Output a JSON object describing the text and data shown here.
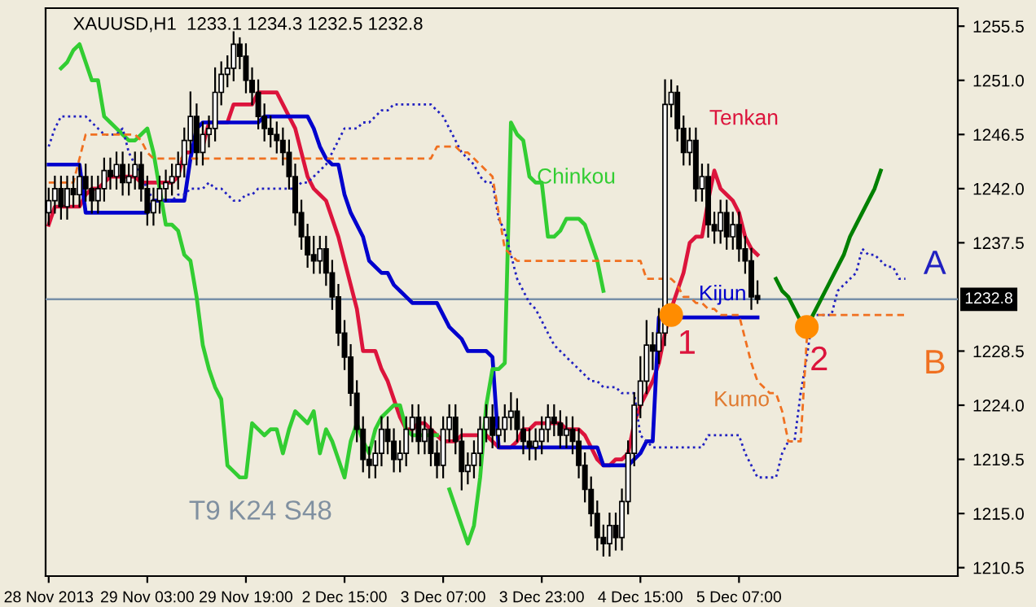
{
  "chart_data": {
    "type": "candlestick",
    "title": "XAUUSD,H1  1233.1 1234.3 1232.5 1232.8",
    "categories": [
      "28 Nov 2013",
      null,
      null,
      null,
      null,
      null,
      null,
      null,
      null,
      null,
      null,
      null,
      null,
      null,
      null,
      null,
      "29 Nov 03:00",
      null,
      null,
      null,
      null,
      null,
      null,
      null,
      null,
      null,
      null,
      null,
      null,
      null,
      null,
      null,
      "29 Nov 19:00",
      null,
      null,
      null,
      null,
      null,
      null,
      null,
      null,
      null,
      null,
      null,
      null,
      null,
      null,
      null,
      "2 Dec 15:00",
      null,
      null,
      null,
      null,
      null,
      null,
      null,
      null,
      null,
      null,
      null,
      null,
      null,
      null,
      null,
      "3 Dec 07:00",
      null,
      null,
      null,
      null,
      null,
      null,
      null,
      null,
      null,
      null,
      null,
      null,
      null,
      null,
      null,
      "3 Dec 23:00",
      null,
      null,
      null,
      null,
      null,
      null,
      null,
      null,
      null,
      null,
      null,
      null,
      null,
      null,
      null,
      "4 Dec 15:00",
      null,
      null,
      null,
      null,
      null,
      null,
      null,
      null,
      null,
      null,
      null,
      null,
      null,
      null,
      null,
      "5 Dec 07:00",
      null,
      null,
      null,
      null,
      null,
      null,
      null,
      null,
      null,
      null,
      null,
      null,
      null,
      null,
      null,
      null,
      null,
      null,
      null,
      null,
      null,
      null,
      null,
      null,
      null,
      null,
      null
    ],
    "ohlc": [
      [
        1240,
        1242,
        1239,
        1241
      ],
      [
        1241,
        1243,
        1240,
        1242
      ],
      [
        1242,
        1243,
        1239.5,
        1240.5
      ],
      [
        1240.5,
        1243,
        1239.5,
        1242
      ],
      [
        1242,
        1243,
        1240.5,
        1241.5
      ],
      [
        1241.5,
        1244,
        1240.5,
        1243
      ],
      [
        1243,
        1244,
        1241,
        1242
      ],
      [
        1242,
        1243,
        1240,
        1241
      ],
      [
        1241,
        1243,
        1240,
        1242
      ],
      [
        1242,
        1244.5,
        1241,
        1243.5
      ],
      [
        1243.5,
        1244.5,
        1242,
        1243
      ],
      [
        1243,
        1245,
        1242,
        1244
      ],
      [
        1244,
        1245,
        1241.5,
        1242.5
      ],
      [
        1242.5,
        1244,
        1241.5,
        1243
      ],
      [
        1243,
        1245,
        1242,
        1244
      ],
      [
        1244,
        1245,
        1241,
        1242
      ],
      [
        1242,
        1243,
        1239,
        1240
      ],
      [
        1240,
        1242,
        1239,
        1241
      ],
      [
        1241,
        1243,
        1240,
        1242
      ],
      [
        1242,
        1243.5,
        1241,
        1242.5
      ],
      [
        1242.5,
        1244,
        1241.5,
        1243
      ],
      [
        1243,
        1245,
        1242,
        1244
      ],
      [
        1244,
        1247,
        1243,
        1246
      ],
      [
        1246,
        1250,
        1245,
        1248
      ],
      [
        1248,
        1249,
        1244,
        1245
      ],
      [
        1245,
        1247.5,
        1244,
        1246.5
      ],
      [
        1246.5,
        1248,
        1245.5,
        1247
      ],
      [
        1247,
        1252,
        1246,
        1250
      ],
      [
        1250,
        1252.5,
        1249,
        1251.5
      ],
      [
        1251.5,
        1253,
        1250.5,
        1252
      ],
      [
        1252,
        1255,
        1251,
        1254
      ],
      [
        1254,
        1254.5,
        1252,
        1253
      ],
      [
        1253,
        1254,
        1250,
        1251
      ],
      [
        1251,
        1252,
        1249,
        1250
      ],
      [
        1250,
        1251,
        1247,
        1248
      ],
      [
        1248,
        1249,
        1246,
        1247
      ],
      [
        1247,
        1248,
        1245.5,
        1246.5
      ],
      [
        1246.5,
        1247.5,
        1245,
        1246
      ],
      [
        1246,
        1247,
        1244,
        1245
      ],
      [
        1245,
        1246,
        1242,
        1243
      ],
      [
        1243,
        1244,
        1239,
        1240
      ],
      [
        1240,
        1241,
        1237,
        1238
      ],
      [
        1238,
        1239,
        1235.5,
        1236.5
      ],
      [
        1236.5,
        1238,
        1235,
        1236
      ],
      [
        1236,
        1238,
        1235,
        1237
      ],
      [
        1237,
        1238,
        1234,
        1235
      ],
      [
        1235,
        1236,
        1232,
        1233
      ],
      [
        1233,
        1234,
        1229,
        1230
      ],
      [
        1230,
        1231,
        1227,
        1228
      ],
      [
        1228,
        1229,
        1224,
        1225
      ],
      [
        1225,
        1226,
        1221,
        1222
      ],
      [
        1222,
        1223,
        1218.5,
        1219.5
      ],
      [
        1219.5,
        1220.5,
        1218,
        1219
      ],
      [
        1219,
        1221,
        1218,
        1220
      ],
      [
        1220,
        1223,
        1219,
        1222
      ],
      [
        1222,
        1223,
        1220,
        1221
      ],
      [
        1221,
        1222,
        1218.5,
        1219.5
      ],
      [
        1219.5,
        1221,
        1218.5,
        1220
      ],
      [
        1220,
        1223,
        1219,
        1222
      ],
      [
        1222,
        1224,
        1221,
        1223
      ],
      [
        1223,
        1224,
        1220,
        1221
      ],
      [
        1221,
        1223,
        1220,
        1222
      ],
      [
        1222,
        1223,
        1219,
        1220
      ],
      [
        1220,
        1221,
        1218,
        1219
      ],
      [
        1219,
        1223,
        1218,
        1222
      ],
      [
        1222,
        1224,
        1221,
        1223
      ],
      [
        1223,
        1224,
        1220,
        1221
      ],
      [
        1221,
        1222,
        1217,
        1218.5
      ],
      [
        1218.5,
        1220,
        1217.5,
        1219
      ],
      [
        1219,
        1221,
        1218,
        1220
      ],
      [
        1220,
        1223,
        1219,
        1222
      ],
      [
        1222,
        1224,
        1221,
        1223
      ],
      [
        1223,
        1224,
        1220.5,
        1221.5
      ],
      [
        1221.5,
        1223,
        1220.5,
        1222
      ],
      [
        1222,
        1224,
        1221,
        1223
      ],
      [
        1223,
        1225,
        1222,
        1223.5
      ],
      [
        1223.5,
        1224.5,
        1221,
        1222
      ],
      [
        1222,
        1223,
        1220,
        1221
      ],
      [
        1221,
        1222,
        1219.5,
        1220.5
      ],
      [
        1220.5,
        1222,
        1219.5,
        1221
      ],
      [
        1221,
        1223,
        1220,
        1222
      ],
      [
        1222,
        1224,
        1221,
        1223
      ],
      [
        1223,
        1224,
        1221.5,
        1222.5
      ],
      [
        1222.5,
        1223.5,
        1220.5,
        1221.5
      ],
      [
        1221.5,
        1223,
        1220.5,
        1222
      ],
      [
        1222,
        1223,
        1220,
        1221
      ],
      [
        1221,
        1222,
        1218,
        1219
      ],
      [
        1219,
        1220,
        1216,
        1217
      ],
      [
        1217,
        1218,
        1214,
        1215
      ],
      [
        1215,
        1216,
        1212,
        1213
      ],
      [
        1213,
        1214,
        1211.5,
        1212.5
      ],
      [
        1212.5,
        1215,
        1211.5,
        1214
      ],
      [
        1214,
        1215,
        1212,
        1213
      ],
      [
        1213,
        1217,
        1212,
        1216
      ],
      [
        1216,
        1221,
        1215,
        1220
      ],
      [
        1220,
        1225,
        1219,
        1224
      ],
      [
        1224,
        1228,
        1223,
        1226
      ],
      [
        1226,
        1231,
        1225,
        1229
      ],
      [
        1229,
        1230,
        1227,
        1228.5
      ],
      [
        1228.5,
        1232,
        1227.5,
        1230
      ],
      [
        1230,
        1251,
        1229,
        1249
      ],
      [
        1249,
        1251,
        1248,
        1250
      ],
      [
        1250,
        1250.5,
        1246,
        1247
      ],
      [
        1247,
        1248,
        1244,
        1245
      ],
      [
        1245,
        1247,
        1244,
        1246
      ],
      [
        1246,
        1247,
        1241,
        1242
      ],
      [
        1242,
        1244,
        1241,
        1243
      ],
      [
        1243,
        1244,
        1238,
        1239
      ],
      [
        1239,
        1240,
        1237.5,
        1238.5
      ],
      [
        1238.5,
        1241,
        1237.5,
        1240
      ],
      [
        1240,
        1241,
        1237,
        1238
      ],
      [
        1238,
        1240,
        1237,
        1239
      ],
      [
        1239,
        1240,
        1236,
        1237
      ],
      [
        1237,
        1238,
        1235,
        1236
      ],
      [
        1236,
        1237,
        1232,
        1233
      ],
      [
        1233.1,
        1234.3,
        1232.5,
        1232.8
      ],
      null,
      null,
      null,
      null,
      null,
      null,
      null,
      null,
      null,
      null,
      null,
      null,
      null,
      null,
      null,
      null,
      null,
      null,
      null,
      null,
      null,
      null,
      null,
      null
    ],
    "series": [
      {
        "name": "Tenkan",
        "type": "line",
        "color": "#dc143c",
        "values": [
          1239,
          1240.5,
          1240.5,
          1240.5,
          1240.5,
          1240.5,
          1241.5,
          1242,
          1242,
          1242.5,
          1243,
          1243,
          1243,
          1243,
          1243,
          1242.5,
          1242.5,
          1242.5,
          1242.5,
          1242.5,
          1242.5,
          1243,
          1245,
          1245,
          null,
          1245.5,
          1247.5,
          null,
          1247.5,
          1247.5,
          1249,
          1249,
          1249,
          1249,
          1250,
          1250,
          1250,
          1250,
          1249,
          1248,
          1247,
          1245,
          1243,
          1242,
          1241.5,
          1241,
          1239.5,
          1238,
          1236,
          1234,
          1232,
          1228.5,
          1228.5,
          1228.5,
          1227,
          1226,
          1224.5,
          1223,
          1222,
          1222,
          1222.5,
          1222.5,
          1222,
          1221.5,
          1221,
          1221,
          1221,
          1221.5,
          1221.5,
          1221.5,
          1221.5,
          1221.5,
          1221,
          1220.5,
          1220.5,
          1220.5,
          1221,
          1222,
          1222,
          1222.5,
          1222.5,
          1222.5,
          1222.5,
          1222.5,
          1222,
          1222,
          1222,
          1221.5,
          1220.5,
          1219.5,
          1219,
          1219,
          1219.5,
          1219.5,
          1220,
          1222.5,
          1224,
          1225,
          1226,
          1227.5,
          1230,
          1232,
          1233.5,
          1235,
          1237.5,
          1238,
          1238,
          1241,
          1243.5,
          1242,
          1241.5,
          1241,
          1240,
          1238,
          1237,
          1236.5,
          null,
          null,
          null,
          null,
          null,
          null,
          null,
          null,
          null,
          null,
          null,
          null,
          null,
          null,
          null,
          null,
          null,
          null,
          null,
          null,
          null,
          null,
          null,
          null
        ]
      },
      {
        "name": "Kijun",
        "type": "line",
        "color": "#0000cd",
        "values": [
          1244,
          1244,
          1244,
          1244,
          1244,
          1244,
          1240,
          1240,
          1240,
          1240,
          1240,
          1240,
          1240,
          1240,
          1240,
          1240,
          1240,
          1241,
          1241,
          1241,
          1241,
          1241,
          1241,
          1244.5,
          1247,
          1247.5,
          1247.5,
          1247.5,
          1247.5,
          1247.5,
          1247.5,
          1247.5,
          1247.5,
          1247.5,
          1247.5,
          1248,
          1248,
          1248,
          1248,
          1248,
          1248,
          1248,
          1248,
          1247,
          1245.5,
          1244.5,
          1244,
          1244,
          1241.5,
          1240,
          1239,
          1238,
          1236,
          1235.5,
          1235,
          1235,
          1234,
          1233.5,
          1233,
          1232.5,
          1232.5,
          1232.5,
          1232.5,
          1232.5,
          1231.5,
          1230.5,
          1230,
          1229.5,
          1228.5,
          1228.5,
          1228.5,
          1228.5,
          1228,
          1220.5,
          1220.5,
          1220.5,
          1220.5,
          1220.5,
          1220.5,
          1220.5,
          1220.5,
          1220.5,
          1220.5,
          1220.5,
          1220.5,
          1220.5,
          1220.5,
          1220.5,
          1220.5,
          1220.5,
          1219,
          1219,
          1219,
          1219,
          1219,
          1219.5,
          1220,
          1221,
          1221,
          1231.3,
          1231.3,
          1231.3,
          1231.3,
          1231.3,
          1231.3,
          1231.3,
          1231.3,
          1231.3,
          1231.3,
          1231.3,
          1231.3,
          1231.3,
          1231.3,
          1231.3,
          1231.3,
          1231.3,
          null,
          null,
          null,
          null,
          null,
          null,
          null,
          null,
          null,
          null,
          null,
          null,
          null,
          null,
          null,
          null,
          null,
          null,
          null,
          null,
          null,
          null,
          null,
          null
        ]
      },
      {
        "name": "Chinkou",
        "type": "line",
        "color": "#32cd32",
        "values": [
          null,
          null,
          1252,
          1252.5,
          1253.5,
          1254,
          1252.5,
          1251,
          1251,
          1248,
          1247.5,
          1247,
          1246.5,
          1246,
          1246,
          1246.5,
          1247,
          1245,
          1242,
          1239,
          1239,
          1238.5,
          1236.5,
          1236,
          1233,
          1229,
          1227,
          1225.5,
          1224.5,
          1219,
          1218.5,
          1218,
          1218,
          1222.5,
          1222,
          1221.5,
          1222,
          1222,
          1220,
          1222,
          1223.5,
          1223,
          1222.5,
          1223.5,
          1220,
          1222,
          1221,
          1219.5,
          1218,
          1221,
          1222.5,
          1221,
          1220,
          1222,
          1223,
          1223.5,
          1224,
          1224,
          1222,
          1221.5,
          1221.5,
          1221.5,
          1221.5,
          1221.5,
          null,
          1217,
          1215.5,
          1214,
          1212.5,
          1214,
          1218,
          1224,
          1227,
          1227,
          1227.5,
          1247.5,
          1246.5,
          1246,
          1243,
          1242.5,
          1242.5,
          1238,
          1238,
          1238.5,
          1239.5,
          1239.5,
          1239.5,
          1239,
          1237.5,
          1236,
          1233.5,
          null,
          null,
          null,
          null,
          null,
          null,
          null,
          null,
          null,
          null,
          null,
          null,
          null,
          null,
          null,
          null,
          null,
          null,
          null,
          null,
          null,
          null,
          null,
          null,
          null,
          null,
          null,
          null,
          null,
          null,
          null,
          null,
          null,
          null,
          null,
          null,
          null,
          null,
          null,
          null,
          null,
          null,
          null,
          null,
          null,
          null,
          null,
          null,
          null
        ]
      },
      {
        "name": "A",
        "type": "line",
        "line_style": "dotted",
        "color": "#2020c0",
        "values": [
          1245.5,
          1247,
          1248,
          1248,
          1248,
          1248,
          1248,
          1247.5,
          1247,
          1246.5,
          1246.5,
          1246.5,
          1247,
          1245,
          1244,
          1243,
          1242,
          1241,
          1241,
          1241,
          1241,
          1241.5,
          1241.5,
          1242,
          1242,
          1242,
          1242.5,
          1242,
          1242,
          1241.5,
          1241,
          1241,
          1241.5,
          1241.5,
          1242,
          1242,
          1242,
          1242,
          1242,
          1242,
          1242,
          1242.5,
          1242.5,
          1243,
          1243.5,
          1244,
          1245,
          1246,
          1247,
          1247,
          1247,
          1247.5,
          1247.5,
          1248,
          1248.5,
          1248.5,
          1249,
          1249,
          1249,
          1249,
          1249,
          1249,
          1249,
          1248.5,
          1248,
          1247,
          1246,
          1245,
          1244.5,
          1244,
          1243,
          1242.5,
          1242.5,
          1239.5,
          1238.5,
          1236.5,
          1234.5,
          1233.5,
          1232.5,
          1232,
          1231,
          1230,
          1229,
          1228.5,
          1228,
          1227.5,
          1227,
          1226.5,
          1226,
          1226,
          1225.5,
          1225.5,
          1225.5,
          1225,
          1225,
          1225,
          1221.5,
          1221,
          1220.5,
          1220.5,
          1220.5,
          1220.5,
          1220.5,
          1220.5,
          1220.5,
          1220.5,
          1220.5,
          1221.5,
          1221.5,
          1221.5,
          1221.5,
          1221.5,
          1221.5,
          1220,
          1219,
          1218,
          1218,
          1218,
          1218,
          1220,
          1221,
          1221,
          1225,
          1228,
          1231.5,
          1231.5,
          1231.5,
          1231.5,
          1233.5,
          1234,
          1234.5,
          1235,
          1237,
          1236.5,
          1236.5,
          1236,
          1235.5,
          1235.5,
          1234.5,
          1234.5
        ]
      },
      {
        "name": "B",
        "type": "line",
        "line_style": "dashed",
        "color": "#f07020",
        "values": [
          1242.5,
          1242.5,
          1242.5,
          1242.5,
          1242.5,
          1244.5,
          1246.5,
          1246.5,
          1246.5,
          1246.5,
          1246.5,
          1246.5,
          1246.5,
          1246.5,
          1246.5,
          1246,
          1245,
          1244.5,
          1244.5,
          1244.5,
          1244.5,
          1244.5,
          1244.5,
          1244.5,
          1244.5,
          1244.5,
          1244.5,
          1244.5,
          1244.5,
          1244.5,
          1244.5,
          1244.5,
          1244.5,
          1244.5,
          1244.5,
          1244.5,
          1244.5,
          1244.5,
          1244.5,
          1244.5,
          1244.5,
          1244.5,
          1244.5,
          1244.5,
          1244.5,
          1244.5,
          1244.5,
          1244.5,
          1244.5,
          1244.5,
          1244.5,
          1244.5,
          1244.5,
          1244.5,
          1244.5,
          1244.5,
          1244.5,
          1244.5,
          1244.5,
          1244.5,
          1244.5,
          1244.5,
          1244.5,
          1245.5,
          1245.5,
          1245.5,
          1245.5,
          1245,
          1245,
          1244.5,
          1244,
          1243.5,
          1243,
          1240,
          1237,
          1236.5,
          1236,
          1236,
          1236,
          1236,
          1236,
          1236,
          1236,
          1236,
          1236,
          1236,
          1236,
          1236,
          1236,
          1236,
          1236,
          1236,
          1236,
          1236,
          1236,
          1236,
          1236,
          1234.5,
          1234.5,
          1234.5,
          1234.5,
          1234.5,
          1234,
          1233,
          1233,
          1232.5,
          1232.5,
          1232,
          1232,
          1231.5,
          1231.5,
          1231.5,
          1231.5,
          1229.5,
          1227.5,
          1226,
          1225.5,
          1225,
          1225,
          1223.5,
          1221,
          1221,
          1221,
          1229.5,
          1231.5,
          1231.5,
          1231.5,
          1231.5,
          1231.5,
          1231.5,
          1231.5,
          1231.5,
          1231.5,
          1231.5,
          1231.5,
          1231.5,
          1231.5,
          1231.5,
          1231.5,
          1231.5
        ]
      },
      {
        "type": "line",
        "color": "#008000",
        "values": [
          null,
          null,
          null,
          null,
          null,
          null,
          null,
          null,
          null,
          null,
          null,
          null,
          null,
          null,
          null,
          null,
          null,
          null,
          null,
          null,
          null,
          null,
          null,
          null,
          null,
          null,
          null,
          null,
          null,
          null,
          null,
          null,
          null,
          null,
          null,
          null,
          null,
          null,
          null,
          null,
          null,
          null,
          null,
          null,
          null,
          null,
          null,
          null,
          null,
          null,
          null,
          null,
          null,
          null,
          null,
          null,
          null,
          null,
          null,
          null,
          null,
          null,
          null,
          null,
          null,
          null,
          null,
          null,
          null,
          null,
          null,
          null,
          null,
          null,
          null,
          null,
          null,
          null,
          null,
          null,
          null,
          null,
          null,
          null,
          null,
          null,
          null,
          null,
          null,
          null,
          null,
          null,
          null,
          null,
          null,
          null,
          null,
          null,
          null,
          null,
          null,
          null,
          null,
          null,
          null,
          null,
          null,
          null,
          null,
          null,
          null,
          null,
          null,
          null,
          null,
          null,
          null,
          null,
          1234.5,
          1233.5,
          1233,
          1232,
          1231,
          1230.5,
          1231.5,
          1232.5,
          1233.5,
          1234.5,
          1235.5,
          1236.5,
          1238,
          1239,
          1240,
          1241,
          1242,
          1243.5,
          null,
          null,
          null,
          null
        ]
      },
      {
        "type": "scatter",
        "marker": "circle",
        "color": "#ff8c00",
        "values": [
          null,
          null,
          null,
          null,
          null,
          null,
          null,
          null,
          null,
          null,
          null,
          null,
          null,
          null,
          null,
          null,
          null,
          null,
          null,
          null,
          null,
          null,
          null,
          null,
          null,
          null,
          null,
          null,
          null,
          null,
          null,
          null,
          null,
          null,
          null,
          null,
          null,
          null,
          null,
          null,
          null,
          null,
          null,
          null,
          null,
          null,
          null,
          null,
          null,
          null,
          null,
          null,
          null,
          null,
          null,
          null,
          null,
          null,
          null,
          null,
          null,
          null,
          null,
          null,
          null,
          null,
          null,
          null,
          null,
          null,
          null,
          null,
          null,
          null,
          null,
          null,
          null,
          null,
          null,
          null,
          null,
          null,
          null,
          null,
          null,
          null,
          null,
          null,
          null,
          null,
          null,
          null,
          null,
          null,
          null,
          null,
          null,
          null,
          null,
          null,
          null,
          1231.5,
          null,
          null,
          null,
          null,
          null,
          null,
          null,
          null,
          null,
          null,
          null,
          null,
          null,
          null,
          null,
          null,
          null,
          null,
          null,
          null,
          null,
          1230.5,
          null,
          null,
          null,
          null,
          null,
          null,
          null,
          null,
          null,
          null,
          null,
          null,
          null,
          null,
          null,
          null
        ]
      }
    ],
    "ref_lines": [
      {
        "axis": "y",
        "value": 1232.8,
        "label": "1232.8",
        "color": "#7890a8"
      }
    ],
    "annotations": [
      "1",
      "2",
      "Kumo",
      "T9 K24 S48"
    ],
    "ylim": [
      1209.8,
      1257
    ],
    "yticks": [
      {
        "value": 1210.5,
        "label": "1210.5"
      },
      {
        "value": 1215,
        "label": "1215.0"
      },
      {
        "value": 1219.5,
        "label": "1219.5"
      },
      {
        "value": 1224,
        "label": "1224.0"
      },
      {
        "value": 1228.5,
        "label": "1228.5"
      },
      {
        "value": 1237.5,
        "label": "1237.5"
      },
      {
        "value": 1242,
        "label": "1242.0"
      },
      {
        "value": 1246.5,
        "label": "1246.5"
      },
      {
        "value": 1251,
        "label": "1251.0"
      },
      {
        "value": 1255.5,
        "label": "1255.5"
      }
    ]
  }
}
